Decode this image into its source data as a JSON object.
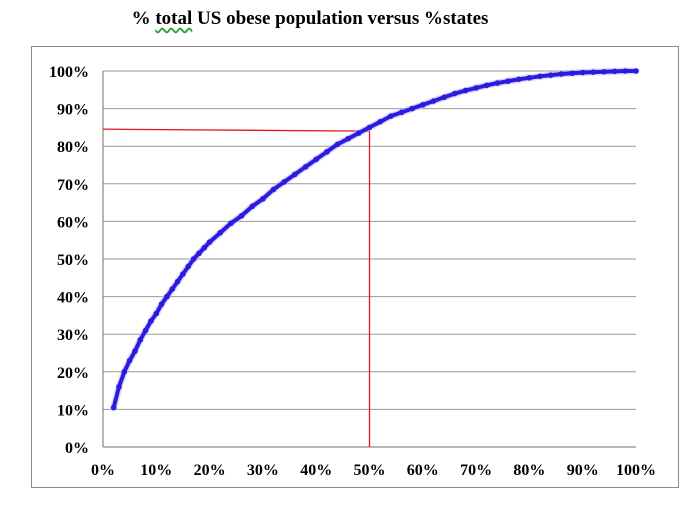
{
  "chart_data": {
    "type": "line",
    "title": "% total US obese population versus %states",
    "title_parts": {
      "prefix": "% ",
      "underlined": "total",
      "suffix": " US obese population versus %states"
    },
    "xlabel": "",
    "ylabel": "",
    "xlim": [
      0,
      1
    ],
    "ylim": [
      0,
      1
    ],
    "x_ticks": [
      0,
      0.1,
      0.2,
      0.3,
      0.4,
      0.5,
      0.6,
      0.7,
      0.8,
      0.9,
      1.0
    ],
    "y_ticks": [
      0,
      0.1,
      0.2,
      0.3,
      0.4,
      0.5,
      0.6,
      0.7,
      0.8,
      0.9,
      1.0
    ],
    "x_tick_labels": [
      "0%",
      "10%",
      "20%",
      "30%",
      "40%",
      "50%",
      "60%",
      "70%",
      "80%",
      "90%",
      "100%"
    ],
    "y_tick_labels": [
      "0%",
      "10%",
      "20%",
      "30%",
      "40%",
      "50%",
      "60%",
      "70%",
      "80%",
      "90%",
      "100%"
    ],
    "grid": "horizontal",
    "series": [
      {
        "color": "#2a1be0",
        "x": [
          0.02,
          0.03,
          0.04,
          0.05,
          0.06,
          0.07,
          0.08,
          0.09,
          0.1,
          0.11,
          0.12,
          0.13,
          0.14,
          0.15,
          0.16,
          0.17,
          0.18,
          0.19,
          0.2,
          0.22,
          0.24,
          0.26,
          0.28,
          0.3,
          0.32,
          0.34,
          0.36,
          0.38,
          0.4,
          0.42,
          0.44,
          0.46,
          0.48,
          0.5,
          0.52,
          0.54,
          0.56,
          0.58,
          0.6,
          0.62,
          0.64,
          0.66,
          0.68,
          0.7,
          0.72,
          0.74,
          0.76,
          0.78,
          0.8,
          0.82,
          0.84,
          0.86,
          0.88,
          0.9,
          0.92,
          0.94,
          0.96,
          0.98,
          1.0
        ],
        "y": [
          0.105,
          0.16,
          0.2,
          0.23,
          0.255,
          0.285,
          0.31,
          0.335,
          0.355,
          0.38,
          0.4,
          0.42,
          0.44,
          0.46,
          0.48,
          0.5,
          0.515,
          0.53,
          0.545,
          0.57,
          0.595,
          0.615,
          0.64,
          0.66,
          0.685,
          0.705,
          0.725,
          0.745,
          0.765,
          0.785,
          0.805,
          0.82,
          0.835,
          0.85,
          0.865,
          0.88,
          0.89,
          0.9,
          0.91,
          0.92,
          0.93,
          0.94,
          0.948,
          0.955,
          0.962,
          0.968,
          0.973,
          0.978,
          0.982,
          0.986,
          0.989,
          0.992,
          0.994,
          0.996,
          0.997,
          0.998,
          0.999,
          1.0,
          1.0
        ]
      }
    ],
    "reference_lines": {
      "color": "#e8141e",
      "horizontal_y": 0.84,
      "vertical_x": 0.5
    }
  }
}
